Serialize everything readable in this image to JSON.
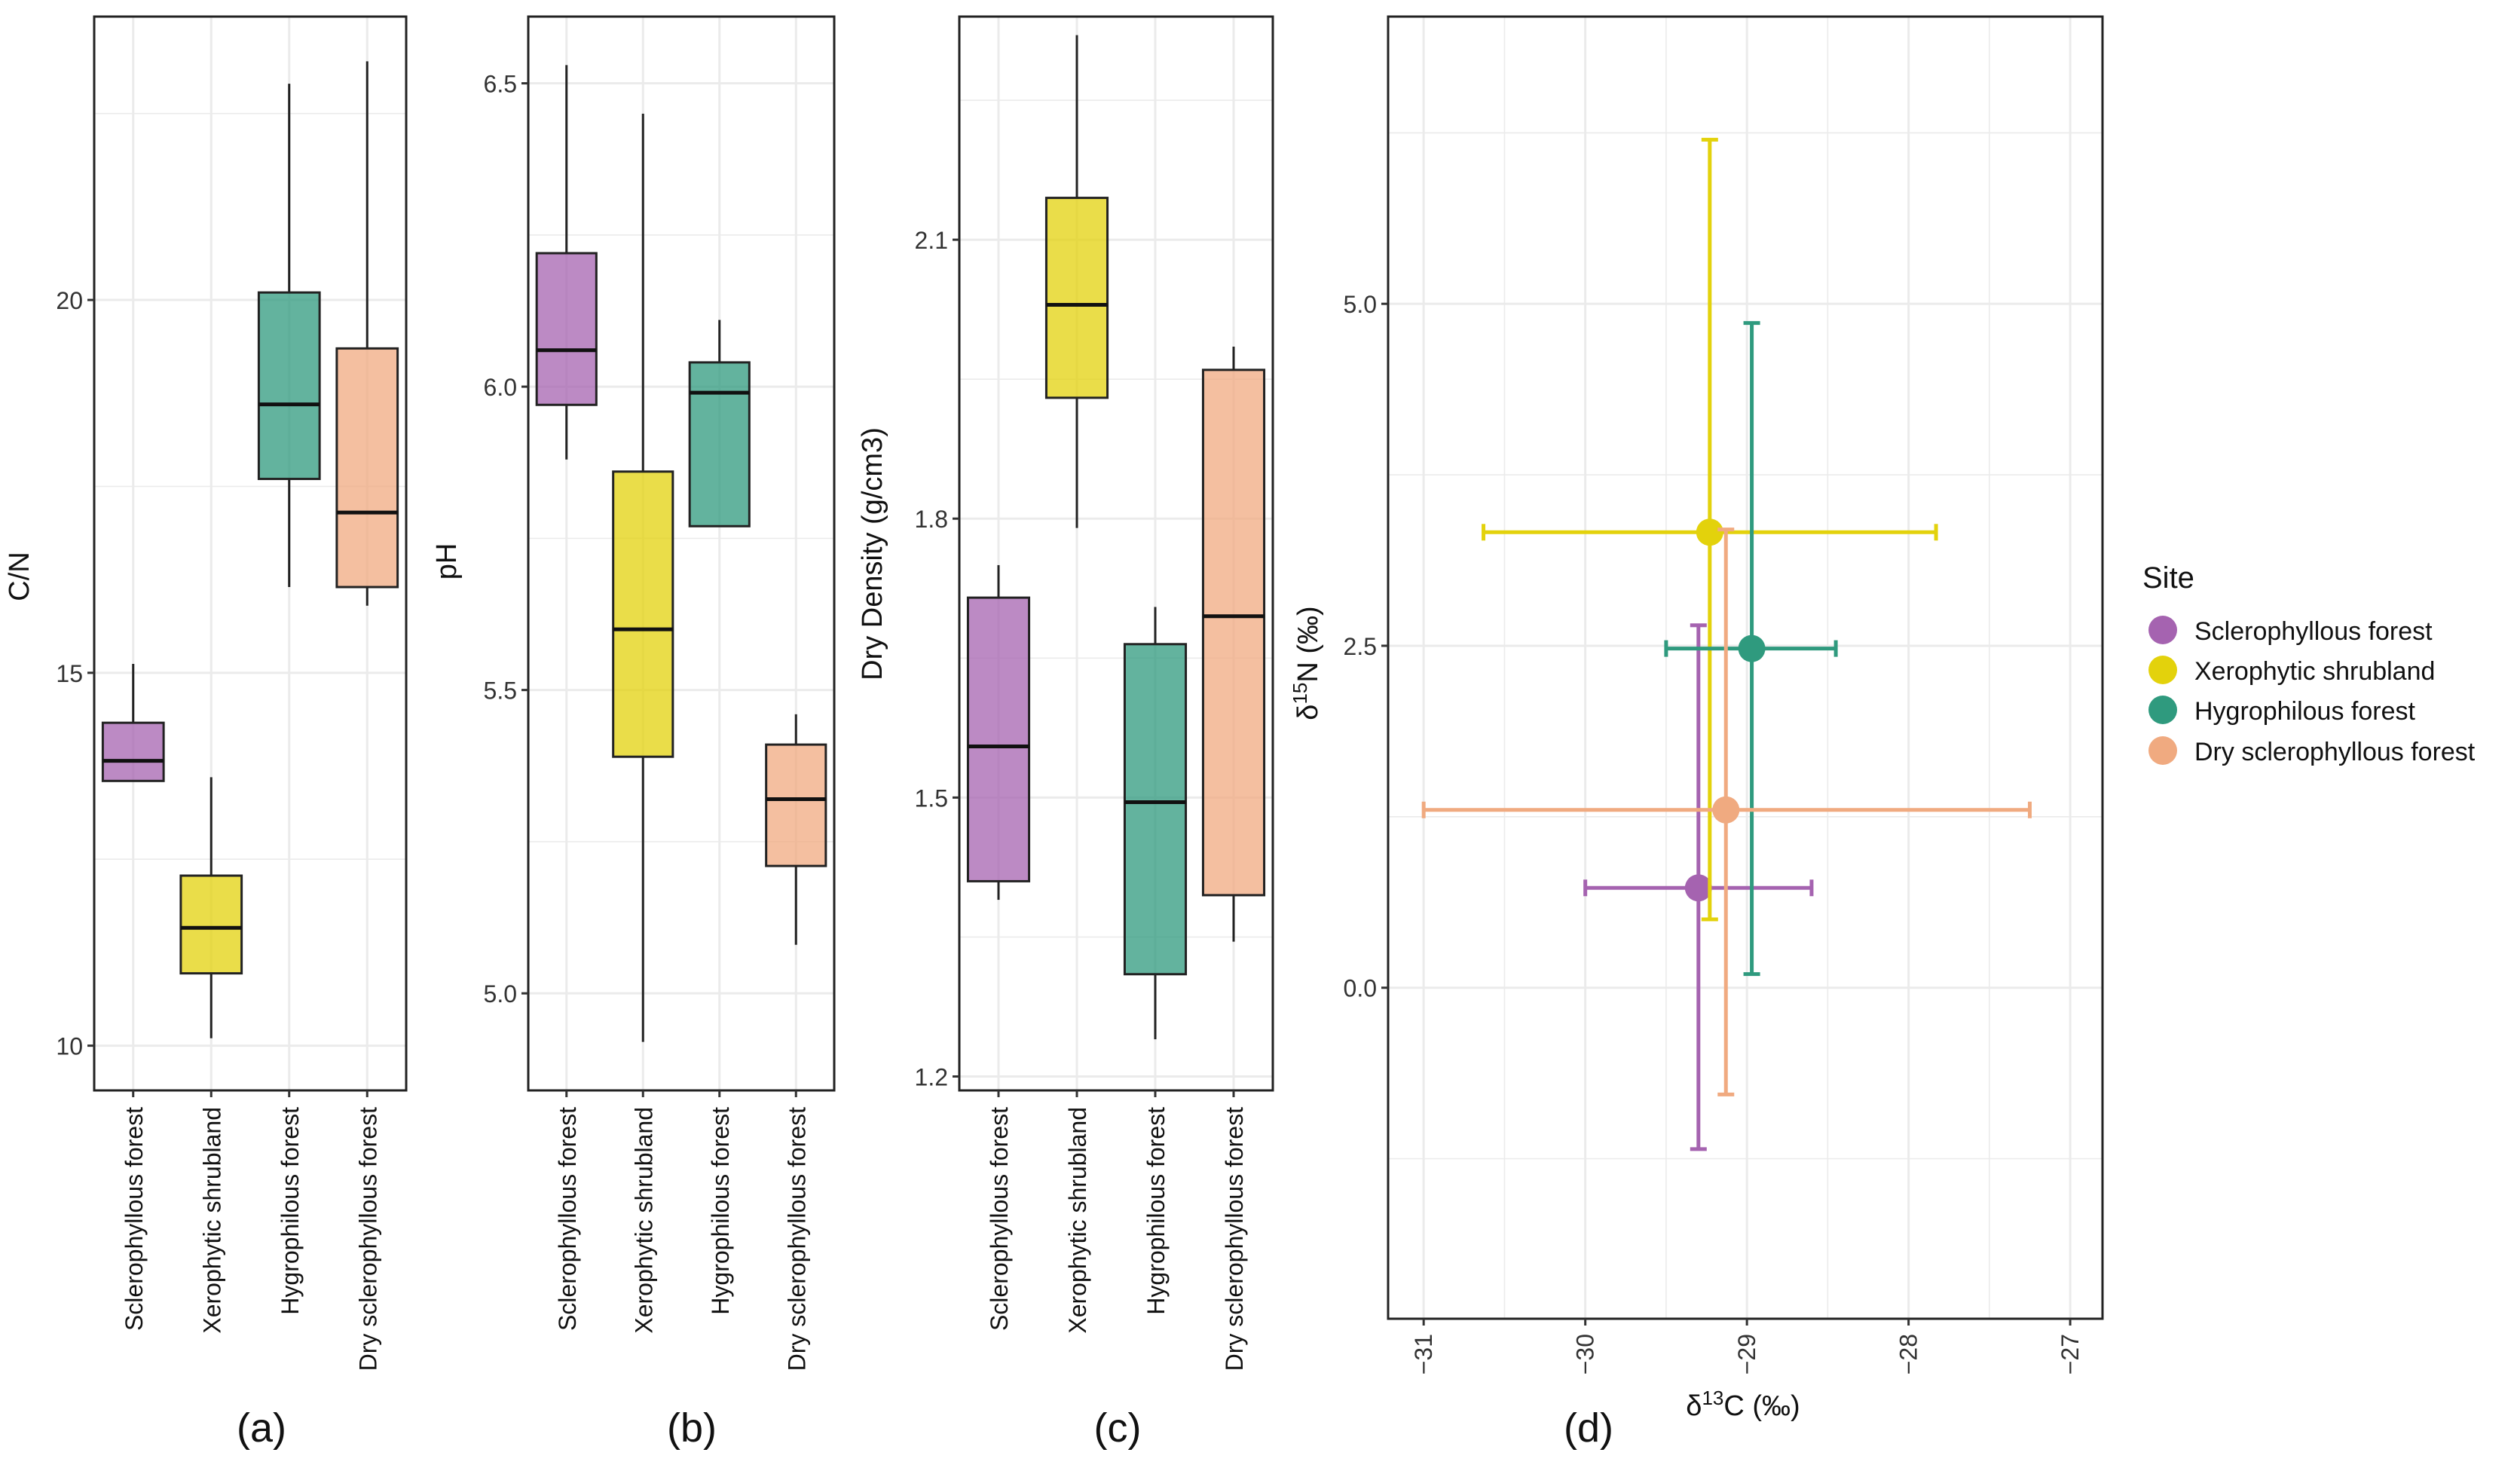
{
  "colors": {
    "sclerophyllous": "#A563B0",
    "xerophytic": "#E3D20C",
    "hygrophilous": "#2F9A7E",
    "dry_sclerophyllous": "#F0AA80",
    "box_alpha": 0.75,
    "grid": "#EBEBEB"
  },
  "chart_data": [
    {
      "type": "box",
      "panel": "(a)",
      "ylabel": "C/N",
      "ylim": [
        9.4,
        23.8
      ],
      "yticks": [
        10,
        15,
        20
      ],
      "categories": [
        "Sclerophyllous forest",
        "Xerophytic shrubland",
        "Hygrophilous forest",
        "Dry sclerophyllous forest"
      ],
      "boxes": [
        {
          "min": 13.55,
          "q1": 13.55,
          "median": 13.82,
          "q3": 14.33,
          "max": 15.12
        },
        {
          "min": 10.1,
          "q1": 10.97,
          "median": 11.58,
          "q3": 12.28,
          "max": 13.6
        },
        {
          "min": 16.15,
          "q1": 17.6,
          "median": 18.6,
          "q3": 20.1,
          "max": 22.9
        },
        {
          "min": 15.9,
          "q1": 16.15,
          "median": 17.15,
          "q3": 19.35,
          "max": 23.2
        }
      ]
    },
    {
      "type": "box",
      "panel": "(b)",
      "ylabel": "pH",
      "ylim": [
        4.84,
        6.61
      ],
      "yticks": [
        5.0,
        5.5,
        6.0,
        6.5
      ],
      "categories": [
        "Sclerophyllous forest",
        "Xerophytic shrubland",
        "Hygrophilous forest",
        "Dry sclerophyllous forest"
      ],
      "boxes": [
        {
          "min": 5.88,
          "q1": 5.97,
          "median": 6.06,
          "q3": 6.22,
          "max": 6.53
        },
        {
          "min": 4.92,
          "q1": 5.39,
          "median": 5.6,
          "q3": 5.86,
          "max": 6.45
        },
        {
          "min": 5.77,
          "q1": 5.77,
          "median": 5.99,
          "q3": 6.04,
          "max": 6.11
        },
        {
          "min": 5.08,
          "q1": 5.21,
          "median": 5.32,
          "q3": 5.41,
          "max": 5.46
        }
      ]
    },
    {
      "type": "box",
      "panel": "(c)",
      "ylabel": "Dry Density (g/cm3)",
      "ylim": [
        1.185,
        2.34
      ],
      "yticks": [
        1.2,
        1.5,
        1.8,
        2.1
      ],
      "categories": [
        "Sclerophyllous forest",
        "Xerophytic shrubland",
        "Hygrophilous forest",
        "Dry sclerophyllous forest"
      ],
      "boxes": [
        {
          "min": 1.39,
          "q1": 1.41,
          "median": 1.555,
          "q3": 1.715,
          "max": 1.75
        },
        {
          "min": 1.79,
          "q1": 1.93,
          "median": 2.03,
          "q3": 2.145,
          "max": 2.32
        },
        {
          "min": 1.24,
          "q1": 1.31,
          "median": 1.495,
          "q3": 1.665,
          "max": 1.705
        },
        {
          "min": 1.345,
          "q1": 1.395,
          "median": 1.695,
          "q3": 1.96,
          "max": 1.985
        }
      ]
    },
    {
      "type": "scatter",
      "panel": "(d)",
      "xlabel": "δ13C (‰)",
      "ylabel": "δ15N (‰)",
      "xlim": [
        -31.22,
        -26.8
      ],
      "ylim": [
        -2.42,
        7.1
      ],
      "xticks": [
        -31,
        -30,
        -29,
        -28,
        -27
      ],
      "yticks": [
        0.0,
        2.5,
        5.0
      ],
      "legend_title": "Site",
      "series": [
        {
          "name": "Sclerophyllous forest",
          "x": -29.3,
          "y": 0.73,
          "xmin": -30.0,
          "xmax": -28.6,
          "ymin": -1.18,
          "ymax": 2.65
        },
        {
          "name": "Xerophytic shrubland",
          "x": -29.23,
          "y": 3.33,
          "xmin": -30.63,
          "xmax": -27.83,
          "ymin": 0.5,
          "ymax": 6.2
        },
        {
          "name": "Hygrophilous forest",
          "x": -28.97,
          "y": 2.48,
          "xmin": -29.5,
          "xmax": -28.45,
          "ymin": 0.1,
          "ymax": 4.86
        },
        {
          "name": "Dry sclerophyllous forest",
          "x": -29.13,
          "y": 1.3,
          "xmin": -31.0,
          "xmax": -27.25,
          "ymin": -0.78,
          "ymax": 3.35
        }
      ]
    }
  ],
  "axis_labels": {
    "a_y": "C/N",
    "b_y": "pH",
    "c_y": "Dry Density (g/cm3)",
    "d_y_delta": "δ",
    "d_y_sup": "15",
    "d_y_rest": "N (‰)",
    "d_x_delta": "δ",
    "d_x_sup": "13",
    "d_x_rest": "C (‰)"
  },
  "panel_labels": {
    "a": "(a)",
    "b": "(b)",
    "c": "(c)",
    "d": "(d)"
  },
  "legend": {
    "title": "Site",
    "items": [
      "Sclerophyllous forest",
      "Xerophytic shrubland",
      "Hygrophilous forest",
      "Dry sclerophyllous forest"
    ]
  }
}
